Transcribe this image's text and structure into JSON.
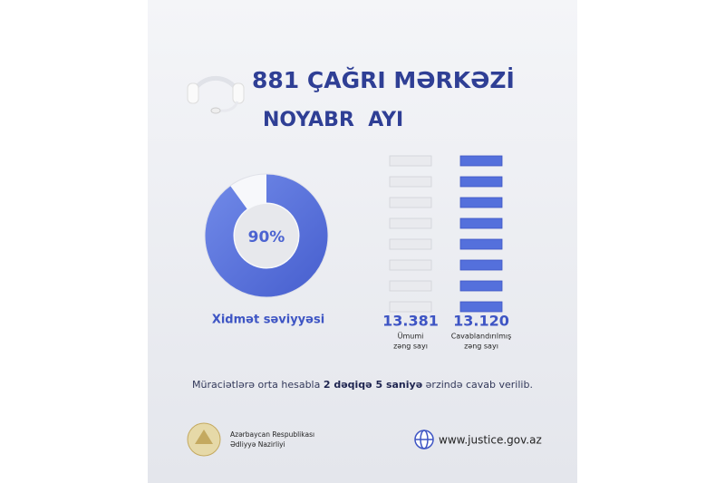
{
  "header": {
    "title": "881 ÇAĞRI MƏRKƏZİ",
    "subtitle": "NOYABR  AYI"
  },
  "donut": {
    "value": 90,
    "value_label": "90%",
    "caption": "Xidmət səviyyəsi"
  },
  "totals": [
    {
      "number": "13.381",
      "caption_lines": [
        "Ümumi",
        "zəng sayı"
      ]
    },
    {
      "number": "13.120",
      "caption_lines": [
        "Cavablandırılmış",
        "zəng sayı"
      ]
    }
  ],
  "note": [
    "Müraciətlərə orta hesabla ",
    "2 dəqiqə 5 saniyə",
    " ərzində cavab verilib."
  ],
  "footer": {
    "org_lines": [
      "Azərbaycan Respublikası",
      "Ədliyyə Nazirliyi"
    ],
    "website": "www.justice.gov.az"
  }
}
